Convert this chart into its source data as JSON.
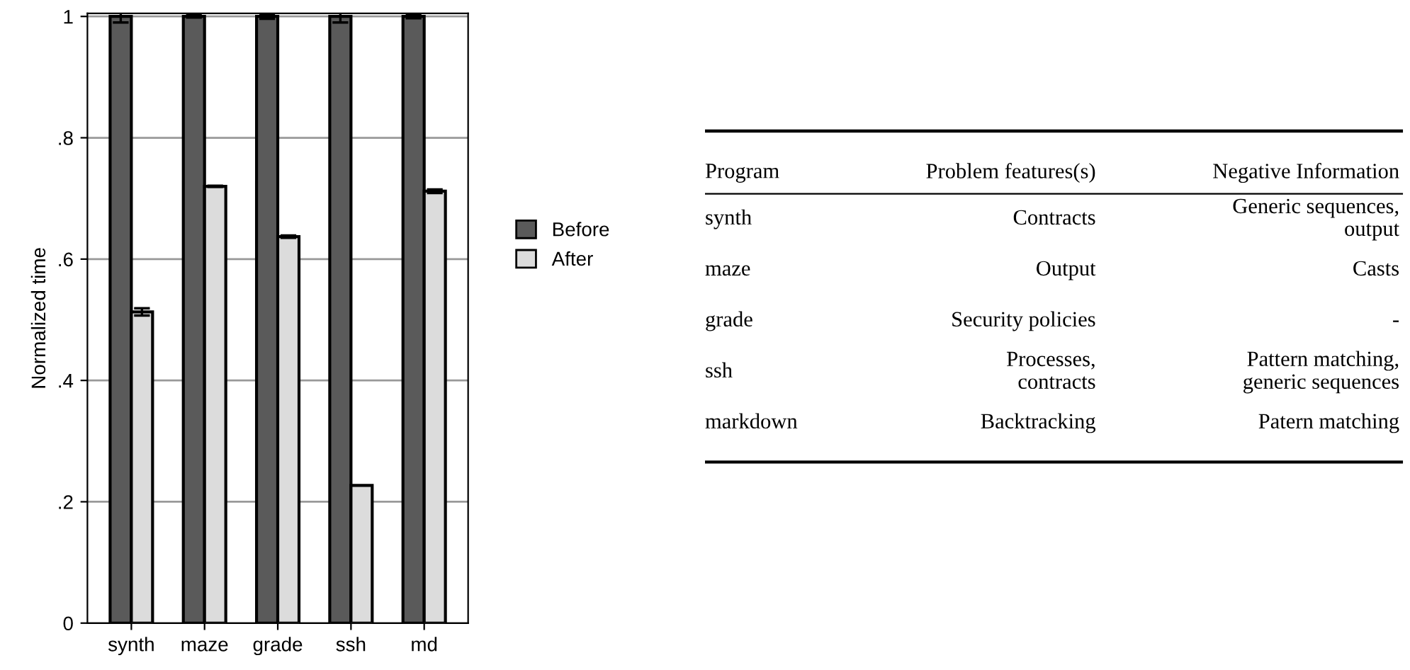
{
  "chart_data": [
    {
      "type": "bar",
      "ylabel": "Normalized time",
      "categories": [
        "synth",
        "maze",
        "grade",
        "ssh",
        "md"
      ],
      "series": [
        {
          "name": "Before",
          "color": "#5a5a5a",
          "values": [
            1,
            1,
            1,
            1,
            1
          ],
          "errors": [
            0.01,
            0.002,
            0.004,
            0.01,
            0.003
          ]
        },
        {
          "name": "After",
          "color": "#dcdcdc",
          "values": [
            0.513,
            0.72,
            0.637,
            0.227,
            0.712
          ],
          "errors": [
            0.006,
            0.001,
            0.002,
            null,
            0.003
          ]
        }
      ],
      "ylim": [
        0,
        1.005
      ],
      "yticks": [
        0,
        {
          "value": 0.2,
          "label": ".2"
        },
        {
          "value": 0.4,
          "label": ".4"
        },
        {
          "value": 0.6,
          "label": ".6"
        },
        {
          "value": 0.8,
          "label": ".8"
        },
        1
      ],
      "grid": "y",
      "legend": "right"
    },
    {
      "type": "other",
      "annotations": [
        "Program",
        "Problem features(s)",
        "Negative Information",
        "synth",
        "Contracts",
        "Generic sequences,\noutput",
        "maze",
        "Output",
        "Casts",
        "grade",
        "Security policies",
        "-",
        "ssh",
        "Processes,\ncontracts",
        "Pattern matching,\ngeneric sequences",
        "markdown",
        "Backtracking",
        "Patern matching"
      ]
    }
  ]
}
